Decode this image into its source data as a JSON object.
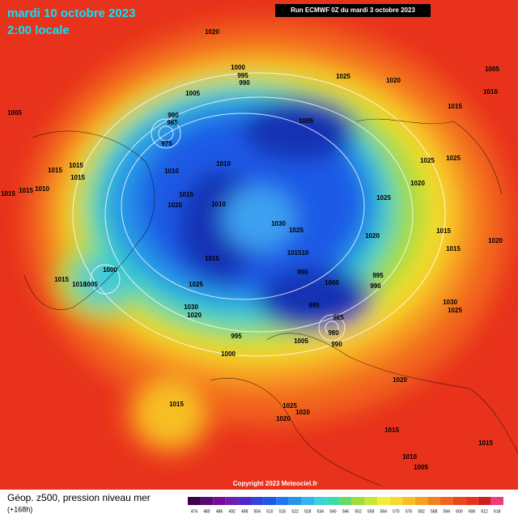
{
  "header": {
    "title": "mardi 10 octobre 2023",
    "subtitle": "2:00 locale",
    "run": "Run ECMWF 0Z du mardi 3 octobre 2023"
  },
  "footer": {
    "caption": "Géop. z500, pression niveau mer",
    "lead": "(+168h)",
    "copyright": "Copyright 2023 Meteociel.fr"
  },
  "legend": {
    "labels": [
      474,
      480,
      486,
      492,
      498,
      504,
      510,
      516,
      522,
      528,
      534,
      540,
      546,
      552,
      558,
      564,
      570,
      576,
      582,
      588,
      594,
      600,
      606,
      612,
      618
    ]
  },
  "isobar_labels": [
    1020,
    1000,
    995,
    990,
    1025,
    1020,
    1005,
    1005,
    1010,
    1005,
    990,
    985,
    975,
    1005,
    1015,
    1015,
    1015,
    1015,
    1010,
    1010,
    1025,
    1025,
    1015,
    1015,
    1010,
    1015,
    1020,
    1010,
    1020,
    1025,
    1030,
    1025,
    1020,
    1015,
    1015,
    1020,
    1015,
    101510,
    1000,
    990,
    995,
    990,
    1000,
    1015,
    1010,
    1005,
    1025,
    995,
    985,
    980,
    990,
    1030,
    1025,
    1030,
    1020,
    995,
    1005,
    1000,
    1020,
    1015,
    1025,
    1020,
    1020,
    1015,
    1010,
    1005,
    1015
  ]
}
